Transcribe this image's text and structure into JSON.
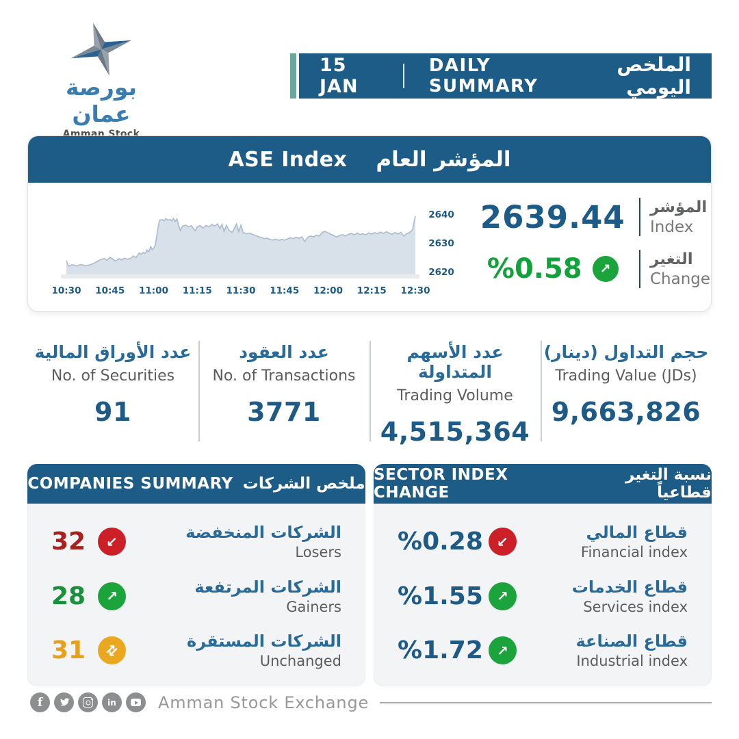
{
  "brand": {
    "name_ar": "بورصة عمان",
    "name_en": "Amman Stock Exchange"
  },
  "header": {
    "date": "15 JAN",
    "title_en": "DAILY SUMMARY",
    "title_ar": "الملخص اليومي"
  },
  "index_card": {
    "title_en": "ASE Index",
    "title_ar": "المؤشر العام",
    "index_value": "2639.44",
    "index_label_ar": "المؤشر",
    "index_label_en": "Index",
    "change_value": "%0.58",
    "change_arrow": "↗",
    "change_direction": "up",
    "change_label_ar": "التغير",
    "change_label_en": "Change"
  },
  "stats": [
    {
      "label_ar": "عدد الأوراق المالية",
      "label_en": "No. of Securities",
      "value": "91"
    },
    {
      "label_ar": "عدد العقود",
      "label_en": "No. of Transactions",
      "value": "3771"
    },
    {
      "label_ar": "عدد الأسهم المتداولة",
      "label_en": "Trading Volume",
      "value": "4,515,364"
    },
    {
      "label_ar": "حجم التداول (دينار)",
      "label_en": "Trading Value (JDs)",
      "value": "9,663,826"
    }
  ],
  "companies": {
    "header_en": "COMPANIES SUMMARY",
    "header_ar": "ملخص الشركات",
    "rows": [
      {
        "value": "32",
        "label_ar": "الشركات المنخفضة",
        "label_en": "Losers",
        "trend": "down",
        "arrow": "↙"
      },
      {
        "value": "28",
        "label_ar": "الشركات المرتفعة",
        "label_en": "Gainers",
        "trend": "up",
        "arrow": "↗"
      },
      {
        "value": "31",
        "label_ar": "الشركات المستقرة",
        "label_en": "Unchanged",
        "trend": "flat",
        "arrow": "⇅"
      }
    ]
  },
  "sectors": {
    "header_en": "SECTOR INDEX CHANGE",
    "header_ar": "نسبة التغير قطاعياً",
    "rows": [
      {
        "value": "%0.28",
        "label_ar": "قطاع المالي",
        "label_en": "Financial index",
        "trend": "down",
        "arrow": "↙"
      },
      {
        "value": "%1.55",
        "label_ar": "قطاع الخدمات",
        "label_en": "Services index",
        "trend": "up",
        "arrow": "↗"
      },
      {
        "value": "%1.72",
        "label_ar": "قطاع الصناعة",
        "label_en": "Industrial index",
        "trend": "up",
        "arrow": "↗"
      }
    ]
  },
  "footer": {
    "brand_text": "Amman Stock Exchange",
    "icons": [
      {
        "name": "facebook-icon",
        "glyph": "f"
      },
      {
        "name": "twitter-icon"
      },
      {
        "name": "instagram-icon"
      },
      {
        "name": "linkedin-icon",
        "glyph": "in"
      },
      {
        "name": "youtube-icon"
      }
    ]
  },
  "colors": {
    "primary_blue": "#1d5c87",
    "accent_teal": "#6ba69a",
    "number_blue": "#1d5b86",
    "green": "#1ba33c",
    "red": "#cc2028",
    "amber": "#e9a81f",
    "chart_fill": "#d8e1ea",
    "chart_line": "#a9bbcc",
    "panel_bg": "#f2f4f6",
    "gray_text": "#5c5d5f"
  },
  "chart_data": {
    "type": "area",
    "title": "ASE Index المؤشر العام",
    "x_ticks": [
      "10:30",
      "10:45",
      "11:00",
      "11:15",
      "11:30",
      "11:45",
      "12:00",
      "12:15",
      "12:30"
    ],
    "x_range_minutes": [
      0,
      120
    ],
    "y_ticks": [
      2620,
      2630,
      2640
    ],
    "y_range": [
      2618.5,
      2642
    ],
    "legend": "none",
    "grid": "off",
    "close_value": 2639.44,
    "change_percent": 0.58,
    "points": [
      [
        0,
        2623.8
      ],
      [
        0.7,
        2621.9
      ],
      [
        2,
        2622.4
      ],
      [
        3.5,
        2622.0
      ],
      [
        5,
        2622.5
      ],
      [
        6.5,
        2622.1
      ],
      [
        8,
        2622.3
      ],
      [
        10,
        2623.2
      ],
      [
        11.5,
        2624.1
      ],
      [
        13,
        2624.6
      ],
      [
        14,
        2624.0
      ],
      [
        15,
        2625.0
      ],
      [
        16,
        2624.3
      ],
      [
        17,
        2623.7
      ],
      [
        18,
        2624.5
      ],
      [
        19,
        2624.1
      ],
      [
        20,
        2624.7
      ],
      [
        21,
        2624.3
      ],
      [
        22,
        2624.6
      ],
      [
        23,
        2625.4
      ],
      [
        24,
        2624.9
      ],
      [
        25,
        2626.5
      ],
      [
        25.7,
        2626.1
      ],
      [
        26.4,
        2626.7
      ],
      [
        27,
        2626.3
      ],
      [
        27.7,
        2627.5
      ],
      [
        28.3,
        2626.9
      ],
      [
        29,
        2628.7
      ],
      [
        29.5,
        2627.7
      ],
      [
        30,
        2628.1
      ],
      [
        30.6,
        2629.3
      ],
      [
        31.3,
        2634.0
      ],
      [
        32,
        2637.9
      ],
      [
        33,
        2638.1
      ],
      [
        33.6,
        2637.7
      ],
      [
        34.2,
        2638.4
      ],
      [
        35,
        2637.9
      ],
      [
        35.6,
        2638.2
      ],
      [
        36.2,
        2637.6
      ],
      [
        36.8,
        2638.5
      ],
      [
        37.4,
        2637.4
      ],
      [
        38,
        2638.3
      ],
      [
        38.6,
        2636.2
      ],
      [
        39.2,
        2634.3
      ],
      [
        40,
        2635.9
      ],
      [
        41,
        2636.2
      ],
      [
        42,
        2635.6
      ],
      [
        43,
        2636.0
      ],
      [
        43.7,
        2635.0
      ],
      [
        44.3,
        2634.2
      ],
      [
        45,
        2635.7
      ],
      [
        46,
        2636.0
      ],
      [
        47,
        2635.2
      ],
      [
        48,
        2636.1
      ],
      [
        49,
        2635.6
      ],
      [
        50,
        2636.4
      ],
      [
        51,
        2635.9
      ],
      [
        52,
        2636.6
      ],
      [
        52.8,
        2635.0
      ],
      [
        53.5,
        2636.5
      ],
      [
        54.2,
        2634.0
      ],
      [
        55,
        2636.1
      ],
      [
        56,
        2634.3
      ],
      [
        57,
        2633.7
      ],
      [
        57.7,
        2634.9
      ],
      [
        58.5,
        2636.6
      ],
      [
        59.3,
        2633.9
      ],
      [
        60,
        2636.2
      ],
      [
        60.8,
        2633.6
      ],
      [
        62,
        2633.2
      ],
      [
        63,
        2633.4
      ],
      [
        64,
        2633.0
      ],
      [
        65,
        2632.6
      ],
      [
        66,
        2632.2
      ],
      [
        67,
        2631.9
      ],
      [
        68,
        2631.5
      ],
      [
        69,
        2631.7
      ],
      [
        70,
        2631.2
      ],
      [
        71,
        2631.0
      ],
      [
        72,
        2631.3
      ],
      [
        73,
        2630.9
      ],
      [
        74,
        2631.2
      ],
      [
        75,
        2631.0
      ],
      [
        76,
        2631.4
      ],
      [
        77,
        2631.8
      ],
      [
        78,
        2631.5
      ],
      [
        79,
        2632.0
      ],
      [
        80,
        2631.6
      ],
      [
        81,
        2632.1
      ],
      [
        82,
        2630.5
      ],
      [
        83,
        2632.0
      ],
      [
        84,
        2632.4
      ],
      [
        85,
        2632.1
      ],
      [
        86,
        2632.7
      ],
      [
        87,
        2632.4
      ],
      [
        88,
        2633.7
      ],
      [
        89,
        2634.0
      ],
      [
        90,
        2633.5
      ],
      [
        91,
        2633.0
      ],
      [
        92,
        2632.5
      ],
      [
        93,
        2632.1
      ],
      [
        94,
        2632.6
      ],
      [
        95,
        2632.9
      ],
      [
        96,
        2632.4
      ],
      [
        97,
        2633.0
      ],
      [
        98,
        2633.3
      ],
      [
        99,
        2632.8
      ],
      [
        100,
        2633.4
      ],
      [
        101,
        2632.9
      ],
      [
        102,
        2633.2
      ],
      [
        103,
        2632.8
      ],
      [
        104,
        2633.5
      ],
      [
        105,
        2633.1
      ],
      [
        106,
        2633.6
      ],
      [
        107,
        2633.2
      ],
      [
        108,
        2633.8
      ],
      [
        109,
        2633.3
      ],
      [
        110,
        2633.9
      ],
      [
        111,
        2633.4
      ],
      [
        112,
        2633.0
      ],
      [
        113,
        2633.6
      ],
      [
        114,
        2633.1
      ],
      [
        115,
        2633.7
      ],
      [
        116,
        2632.4
      ],
      [
        117,
        2633.2
      ],
      [
        118,
        2633.6
      ],
      [
        119,
        2634.6
      ],
      [
        120,
        2639.3
      ]
    ]
  }
}
